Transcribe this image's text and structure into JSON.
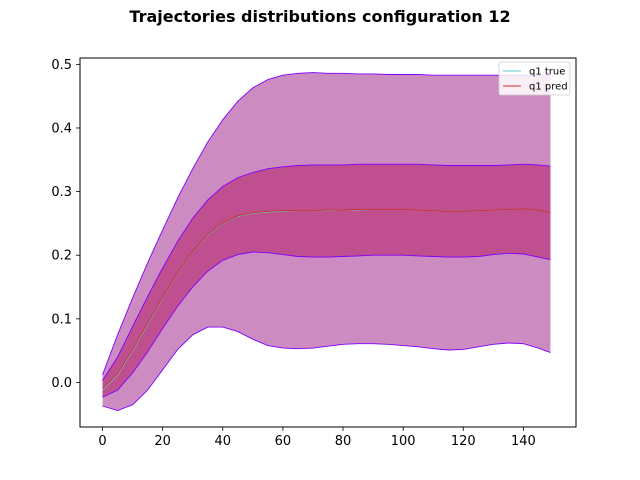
{
  "chart_data": {
    "type": "area",
    "title": "Trajectories distributions configuration  12",
    "xlabel": "",
    "ylabel": "",
    "xlim": [
      -7.5,
      157.5
    ],
    "ylim": [
      -0.07,
      0.51
    ],
    "xticks": [
      0,
      20,
      40,
      60,
      80,
      100,
      120,
      140
    ],
    "yticks": [
      0.0,
      0.1,
      0.2,
      0.3,
      0.4,
      0.5
    ],
    "ytick_labels": [
      "0.0",
      "0.1",
      "0.2",
      "0.3",
      "0.4",
      "0.5"
    ],
    "grid": false,
    "legend_position": "top-right",
    "x": [
      0,
      5,
      10,
      15,
      20,
      25,
      30,
      35,
      40,
      45,
      50,
      55,
      60,
      65,
      70,
      75,
      80,
      85,
      90,
      95,
      100,
      105,
      110,
      115,
      120,
      125,
      130,
      135,
      140,
      145,
      149
    ],
    "bands": [
      {
        "name": "outer band",
        "fill_color": "#cd8cc1",
        "edge_color": "#8000ff",
        "upper": [
          0.012,
          0.075,
          0.133,
          0.188,
          0.24,
          0.29,
          0.336,
          0.378,
          0.413,
          0.442,
          0.463,
          0.476,
          0.483,
          0.486,
          0.487,
          0.486,
          0.486,
          0.485,
          0.485,
          0.484,
          0.484,
          0.484,
          0.483,
          0.483,
          0.483,
          0.483,
          0.483,
          0.483,
          0.483,
          0.483,
          0.483
        ],
        "lower": [
          -0.037,
          -0.044,
          -0.035,
          -0.012,
          0.02,
          0.052,
          0.075,
          0.087,
          0.087,
          0.08,
          0.068,
          0.058,
          0.054,
          0.053,
          0.054,
          0.057,
          0.06,
          0.061,
          0.061,
          0.06,
          0.058,
          0.056,
          0.053,
          0.051,
          0.052,
          0.056,
          0.06,
          0.062,
          0.061,
          0.054,
          0.047
        ]
      },
      {
        "name": "inner band",
        "fill_color": "#c04f90",
        "edge_color": "#8000ff",
        "upper": [
          0.003,
          0.04,
          0.088,
          0.135,
          0.18,
          0.222,
          0.258,
          0.287,
          0.308,
          0.322,
          0.33,
          0.336,
          0.339,
          0.341,
          0.342,
          0.342,
          0.342,
          0.343,
          0.343,
          0.343,
          0.343,
          0.343,
          0.342,
          0.341,
          0.341,
          0.341,
          0.341,
          0.342,
          0.343,
          0.342,
          0.34
        ],
        "lower": [
          -0.023,
          -0.012,
          0.015,
          0.048,
          0.085,
          0.12,
          0.15,
          0.175,
          0.192,
          0.201,
          0.205,
          0.204,
          0.201,
          0.198,
          0.197,
          0.197,
          0.198,
          0.199,
          0.2,
          0.2,
          0.2,
          0.199,
          0.198,
          0.197,
          0.197,
          0.198,
          0.201,
          0.203,
          0.202,
          0.197,
          0.193
        ]
      }
    ],
    "series": [
      {
        "name": "q1 true",
        "color": "#5fc8c8",
        "values": [
          -0.012,
          0.012,
          0.05,
          0.091,
          0.133,
          0.172,
          0.205,
          0.232,
          0.25,
          0.261,
          0.266,
          0.268,
          0.269,
          0.27,
          0.27,
          0.27,
          0.271,
          0.271,
          0.272,
          0.272,
          0.272,
          0.271,
          0.27,
          0.269,
          0.269,
          0.27,
          0.271,
          0.272,
          0.273,
          0.271,
          0.267
        ]
      },
      {
        "name": "q1 pred",
        "color": "#d62728",
        "values": [
          -0.01,
          0.014,
          0.052,
          0.093,
          0.134,
          0.173,
          0.206,
          0.233,
          0.251,
          0.262,
          0.267,
          0.269,
          0.27,
          0.27,
          0.27,
          0.271,
          0.271,
          0.272,
          0.272,
          0.272,
          0.272,
          0.271,
          0.27,
          0.269,
          0.269,
          0.27,
          0.271,
          0.272,
          0.273,
          0.271,
          0.267
        ]
      }
    ]
  }
}
